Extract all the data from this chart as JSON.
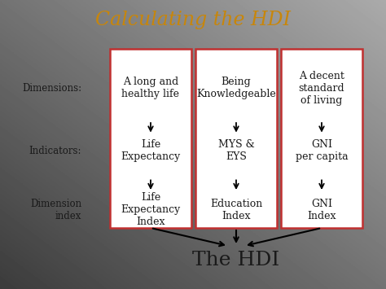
{
  "title": "Calculating the HDI",
  "title_color": "#c8860a",
  "title_fontsize": 17,
  "bg_color": "#e0e0e0",
  "box_edge_color": "#c03030",
  "text_color": "#1a1a1a",
  "hdi_text": "The HDI",
  "hdi_fontsize": 18,
  "left_label_dims": "Dimensions:",
  "left_label_inds": "Indicators:",
  "left_label_dim_idx": "Dimension\nindex",
  "label_fontsize": 8.5,
  "content_fontsize": 9,
  "columns": [
    {
      "top_text": "A long and\nhealthy life",
      "mid_text": "Life\nExpectancy",
      "bot_text": "Life\nExpectancy\nIndex"
    },
    {
      "top_text": "Being\nKnowledgeable",
      "mid_text": "MYS &\nEYS",
      "bot_text": "Education\nIndex"
    },
    {
      "top_text": "A decent\nstandard\nof living",
      "mid_text": "GNI\nper capita",
      "bot_text": "GNI\nIndex"
    }
  ]
}
